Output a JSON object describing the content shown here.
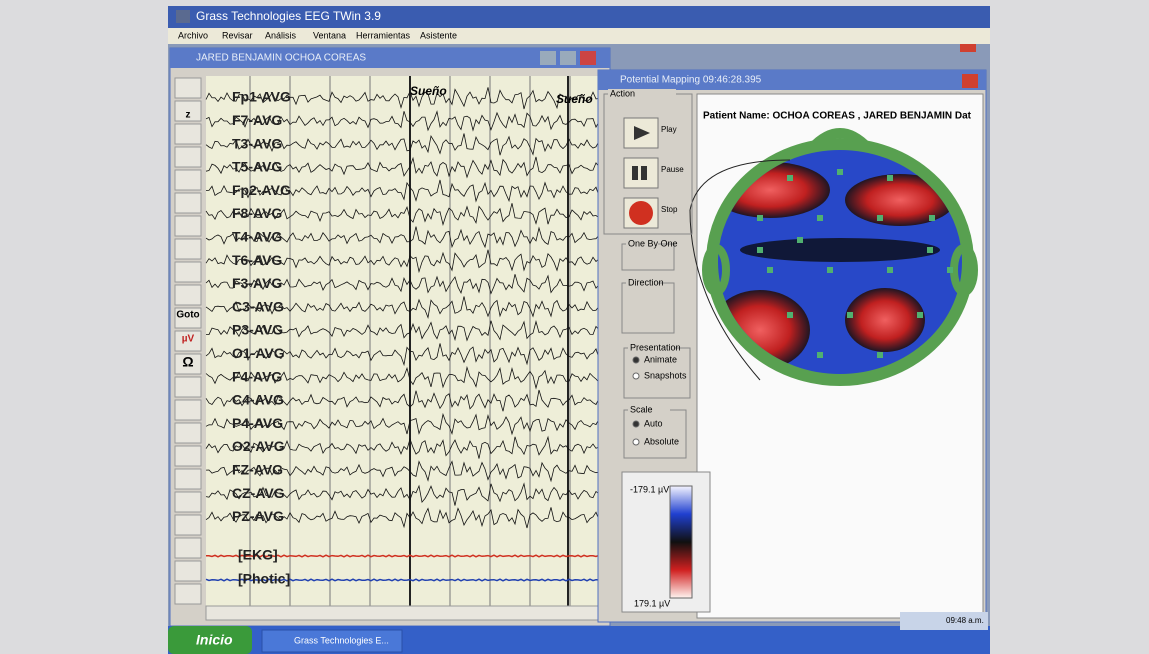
{
  "app": {
    "title": "Grass Technologies EEG TWin 3.9",
    "menu": [
      "Archivo",
      "Revisar",
      "Análisis",
      "Ventana",
      "Herramientas",
      "Asistente"
    ]
  },
  "eeg_window": {
    "title": "JARED BENJAMIN OCHOA COREAS",
    "toolbar_labels": [
      "z",
      "Goto",
      "µV",
      "Ω"
    ],
    "channels": [
      "Fp1-AVG",
      "F7-AVG",
      "T3-AVG",
      "T5-AVG",
      "Fp2-AVG",
      "F8-AVG",
      "T4-AVG",
      "T6-AVG",
      "F3-AVG",
      "C3-AVG",
      "P3-AVG",
      "O1-AVG",
      "F4-AVG",
      "C4-AVG",
      "P4-AVG",
      "O2-AVG",
      "FZ-AVG",
      "CZ-AVG",
      "PZ-AVG",
      "[EKG]",
      "[Photic]"
    ],
    "annotations": [
      "Sueño",
      "Sueño"
    ]
  },
  "mapping_window": {
    "title": "Potential Mapping 09:46:28.395",
    "patient": "Patient Name: OCHOA COREAS , JARED BENJAMIN   Dat",
    "action": {
      "label": "Action",
      "buttons": [
        "Play",
        "Pause",
        "Stop"
      ]
    },
    "one_by_one": "One By One",
    "direction": "Direction",
    "presentation": {
      "label": "Presentation",
      "options": [
        "Animate",
        "Snapshots"
      ]
    },
    "scale": {
      "label": "Scale",
      "options": [
        "Auto",
        "Absolute"
      ]
    },
    "colorbar": {
      "top": "-179.1 µV",
      "bottom": "179.1 µV"
    }
  },
  "taskbar": {
    "start": "Inicio",
    "task": "Grass Technologies E...",
    "clock": "09:48 a.m."
  }
}
